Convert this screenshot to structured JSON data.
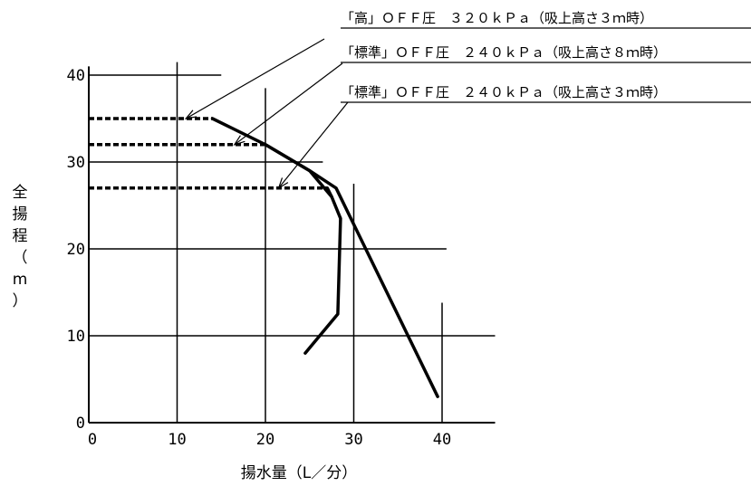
{
  "chart_data": {
    "type": "line",
    "xlabel": "揚水量（L／分）",
    "ylabel": [
      "全",
      "揚",
      "程",
      "（",
      "m",
      "）"
    ],
    "x_ticks": [
      "0",
      "10",
      "20",
      "30",
      "40"
    ],
    "y_ticks": [
      "0",
      "10",
      "20",
      "30",
      "40"
    ],
    "xlim": [
      0,
      46
    ],
    "ylim": [
      0,
      42
    ],
    "grid": true,
    "shutoff_lines": [
      {
        "y": 35,
        "x_end": 14
      },
      {
        "y": 32,
        "x_end": 20
      },
      {
        "y": 27,
        "x_end": 27
      }
    ],
    "series": [
      {
        "name": "",
        "x": [
          14,
          20,
          25,
          28,
          39.5
        ],
        "y": [
          35,
          32,
          29,
          27,
          3
        ]
      },
      {
        "name": "",
        "x": [
          20,
          25,
          27.5,
          28.5,
          28.2,
          24.5
        ],
        "y": [
          32,
          29,
          26,
          23.5,
          12.5,
          8
        ]
      },
      {
        "name": "",
        "x": [
          27,
          27.5
        ],
        "y": [
          27,
          26
        ]
      }
    ],
    "annotations": [
      {
        "text": "「高」ＯＦＦ圧　３２０ｋＰａ（吸上高さ３ｍ時）",
        "target": [
          11,
          35
        ]
      },
      {
        "text": "「標準」ＯＦＦ圧　２４０ｋＰａ（吸上高さ８ｍ時）",
        "target": [
          16.5,
          32
        ]
      },
      {
        "text": "「標準」ＯＦＦ圧　２４０ｋＰａ（吸上高さ３ｍ時）",
        "target": [
          21.5,
          27
        ]
      }
    ]
  }
}
